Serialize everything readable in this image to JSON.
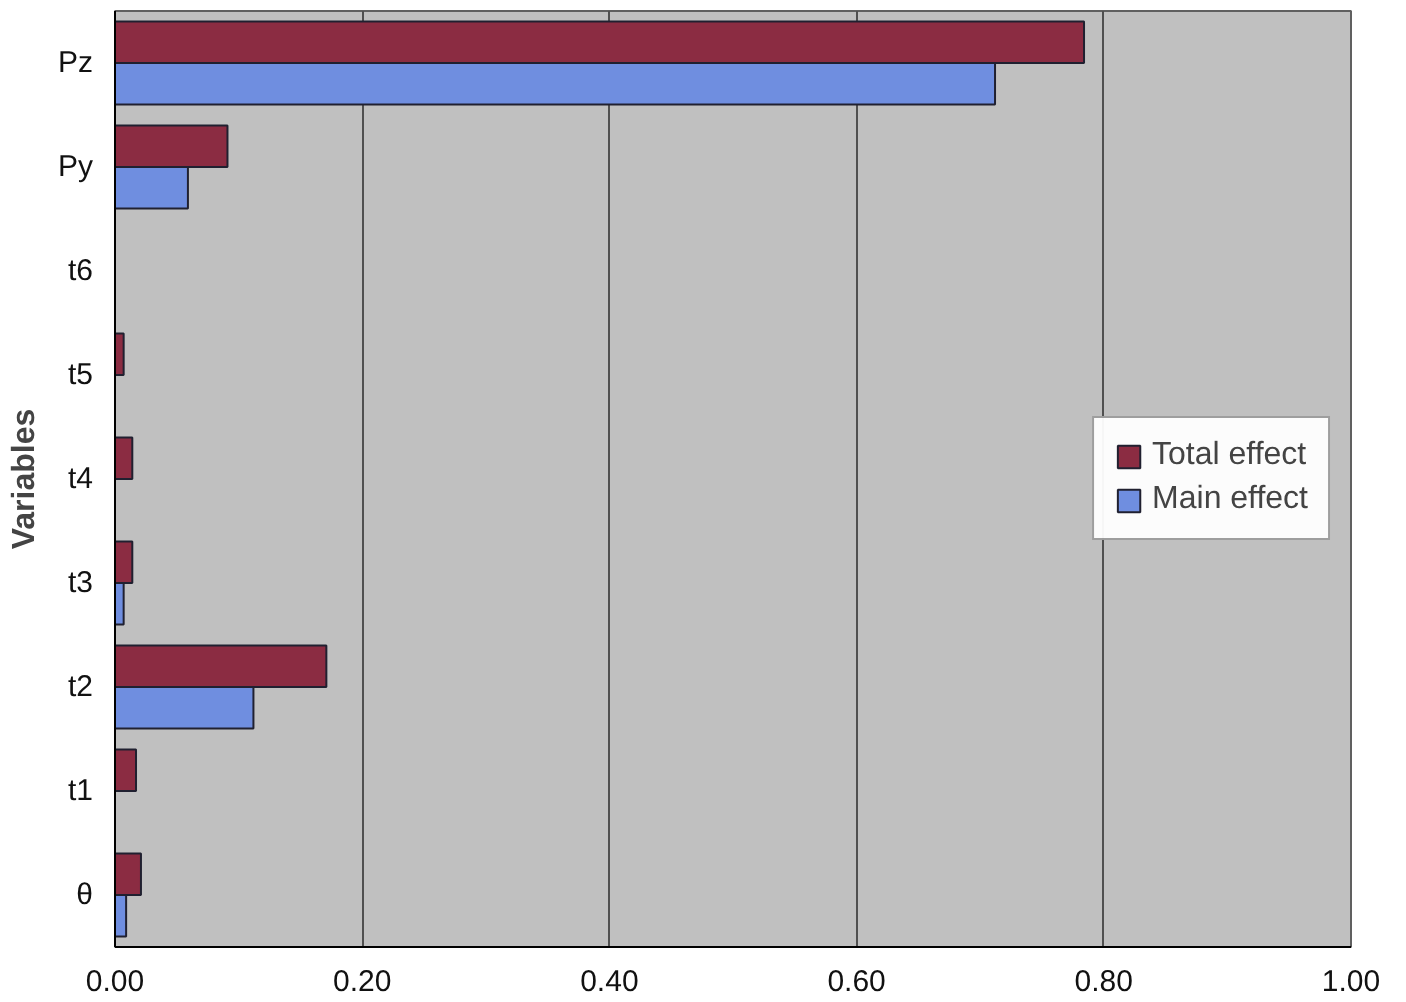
{
  "chart_data": {
    "type": "bar",
    "orientation": "horizontal",
    "ylabel": "Variables",
    "categories": [
      "Pz",
      "Py",
      "t6",
      "t5",
      "t4",
      "t3",
      "t2",
      "t1",
      "θ"
    ],
    "series": [
      {
        "name": "Total effect",
        "color": "#8b2c42",
        "values": [
          0.784,
          0.091,
          null,
          0.007,
          0.014,
          0.014,
          0.171,
          0.017,
          0.021
        ]
      },
      {
        "name": "Main effect",
        "color": "#6f8ee0",
        "values": [
          0.712,
          0.059,
          null,
          null,
          null,
          0.007,
          0.112,
          null,
          0.009
        ]
      }
    ],
    "xlim": [
      0,
      1
    ],
    "xticks": [
      {
        "value": 0,
        "label": "0.00"
      },
      {
        "value": 0.2,
        "label": "0.20"
      },
      {
        "value": 0.4,
        "label": "0.40"
      },
      {
        "value": 0.6,
        "label": "0.60"
      },
      {
        "value": 0.8,
        "label": "0.80"
      },
      {
        "value": 1,
        "label": "1.00"
      }
    ],
    "grid": "x",
    "legend": "right"
  }
}
